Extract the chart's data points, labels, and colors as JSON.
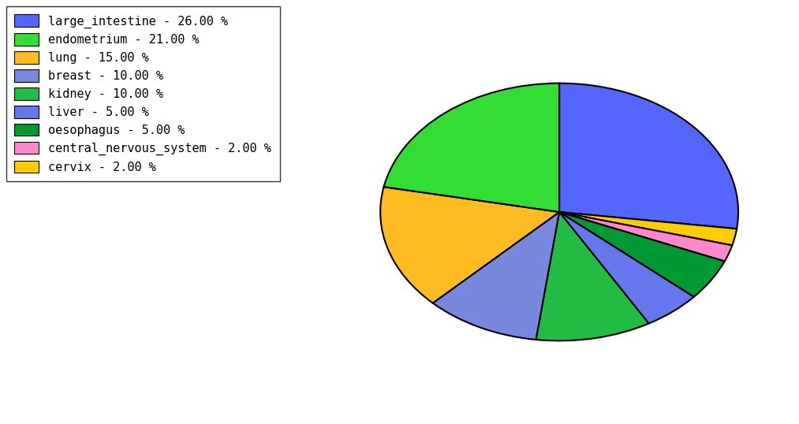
{
  "labels": [
    "large_intestine",
    "cervix",
    "central_nervous_system",
    "oesophagus",
    "liver",
    "kidney",
    "breast",
    "lung",
    "endometrium"
  ],
  "values": [
    26,
    2,
    2,
    5,
    5,
    10,
    10,
    15,
    21
  ],
  "slice_colors": [
    "#5566ff",
    "#ffcc00",
    "#ff88cc",
    "#009933",
    "#6677ee",
    "#22bb44",
    "#7788dd",
    "#ffbb22",
    "#33dd33"
  ],
  "legend_labels": [
    "large_intestine - 26.00 %",
    "endometrium - 21.00 %",
    "lung - 15.00 %",
    "breast - 10.00 %",
    "kidney - 10.00 %",
    "liver - 5.00 %",
    "oesophagus - 5.00 %",
    "central_nervous_system - 2.00 %",
    "cervix - 2.00 %"
  ],
  "legend_colors": [
    "#5566ff",
    "#33dd33",
    "#ffbb22",
    "#7788dd",
    "#22bb44",
    "#6677ee",
    "#009933",
    "#ff88cc",
    "#ffcc00"
  ],
  "startangle": 90,
  "counterclock": false,
  "aspect_ratio": 0.72,
  "figsize": [
    10.13,
    5.38
  ],
  "dpi": 100
}
